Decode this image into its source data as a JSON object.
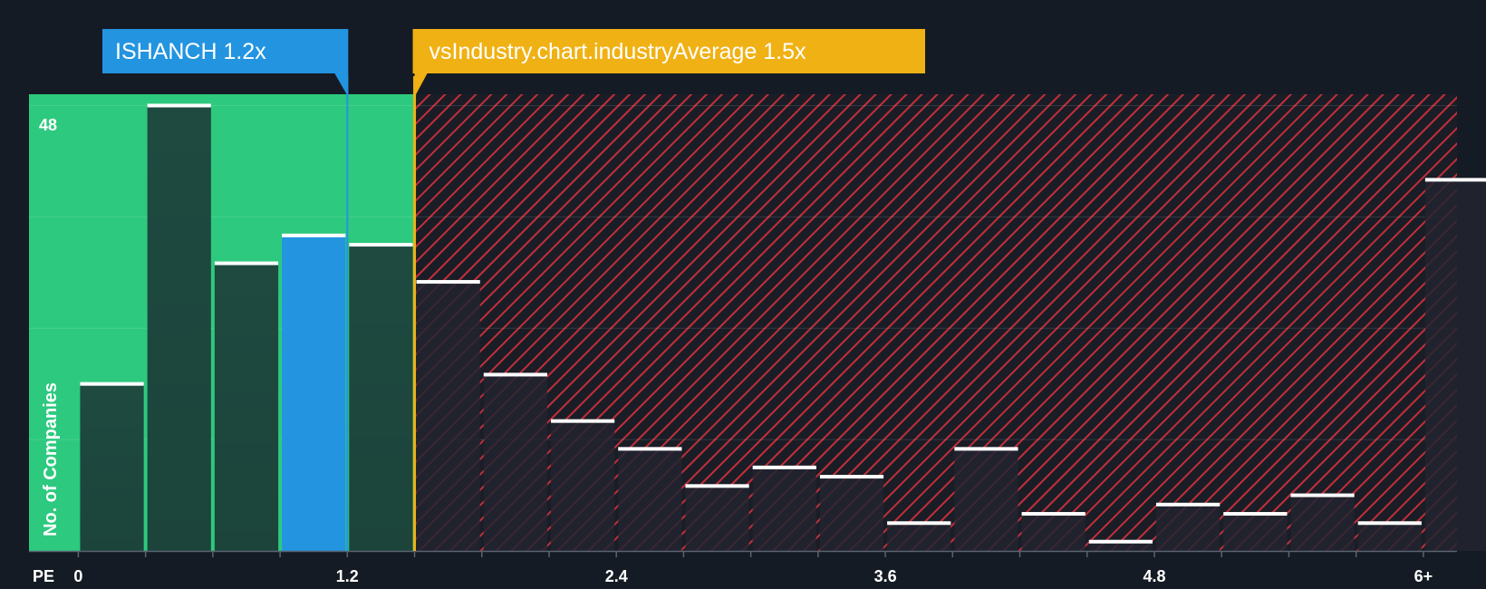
{
  "chart_data": {
    "type": "bar",
    "title": "",
    "xlabel": "PE",
    "ylabel": "No. of Companies",
    "bin_width": 0.3,
    "x_tick_labels": [
      "0",
      "1.2",
      "2.4",
      "3.6",
      "4.8",
      "6+"
    ],
    "x_tick_values": [
      0,
      1.2,
      2.4,
      3.6,
      4.8,
      6.0
    ],
    "xlim": [
      -0.22,
      6.15
    ],
    "ylim": [
      0,
      50
    ],
    "y_tick_label": "48",
    "y_tick_value": 48,
    "grid": true,
    "bins_start": [
      0,
      0.3,
      0.6,
      0.9,
      1.2,
      1.5,
      1.8,
      2.1,
      2.4,
      2.7,
      3.0,
      3.3,
      3.6,
      3.9,
      4.2,
      4.5,
      4.8,
      5.1,
      5.4,
      5.7,
      6.0
    ],
    "values": [
      18,
      48,
      31,
      34,
      33,
      29,
      19,
      14,
      11,
      7,
      9,
      8,
      3,
      11,
      4,
      1,
      5,
      4,
      6,
      3,
      40
    ],
    "highlight_bin_index": 3,
    "company": {
      "label": "ISHANCH 1.2x",
      "value": 1.2
    },
    "industry": {
      "label": "vsIndustry.chart.industryAverage 1.5x",
      "value": 1.5
    },
    "colors": {
      "background": "#151b24",
      "fair_zone": "#2dc97e",
      "bar_in_zone": "#1e4a40",
      "bar_highlight": "#2394e0",
      "overvalued_zone": "#c22f3a",
      "bar_overvalued": "#222530",
      "bar_cap": "#ffffff",
      "company_callout": "#2394e0",
      "industry_callout": "#f0b114"
    }
  }
}
